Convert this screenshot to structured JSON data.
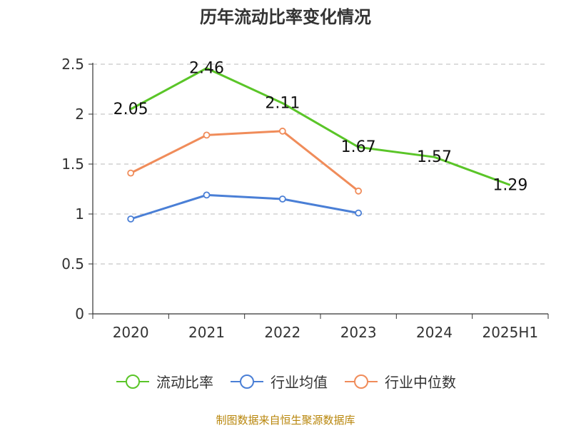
{
  "title": "历年流动比率变化情况",
  "source": "制图数据来自恒生聚源数据库",
  "chart_data": {
    "type": "line",
    "categories": [
      "2020",
      "2021",
      "2022",
      "2023",
      "2024",
      "2025H1"
    ],
    "yticks": [
      "0",
      "0.5",
      "1",
      "1.5",
      "2",
      "2.5"
    ],
    "ylim": [
      0,
      2.5
    ],
    "grid": true,
    "legend_position": "bottom",
    "series": [
      {
        "name": "流动比率",
        "color": "#5ac528",
        "values": [
          2.05,
          2.46,
          2.11,
          1.67,
          1.57,
          1.29
        ],
        "labels": [
          "2.05",
          "2.46",
          "2.11",
          "1.67",
          "1.57",
          "1.29"
        ],
        "show_markers": false
      },
      {
        "name": "行业均值",
        "color": "#4a7fd6",
        "values": [
          0.95,
          1.19,
          1.15,
          1.01,
          null,
          null
        ],
        "show_markers": true
      },
      {
        "name": "行业中位数",
        "color": "#f08c5a",
        "values": [
          1.41,
          1.79,
          1.83,
          1.23,
          null,
          null
        ],
        "show_markers": true
      }
    ]
  }
}
